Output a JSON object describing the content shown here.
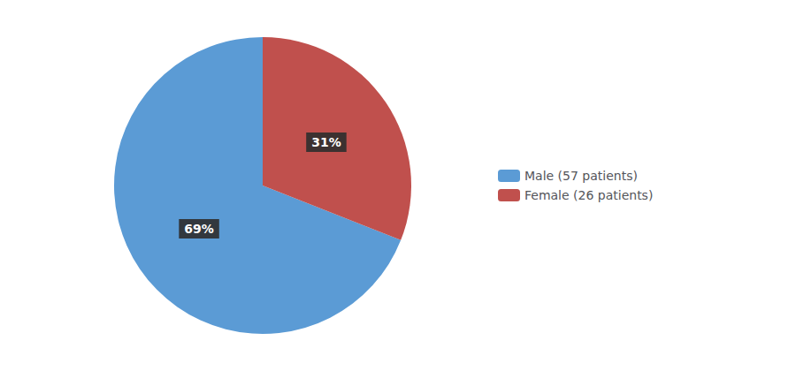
{
  "chart_data": {
    "type": "pie",
    "categories": [
      "Male (57 patients)",
      "Female (26 patients)"
    ],
    "values": [
      69,
      31
    ],
    "value_labels": [
      "69%",
      "31%"
    ],
    "colors": [
      "#5B9BD5",
      "#C0504D"
    ],
    "data_labels": true,
    "legend": "right"
  }
}
